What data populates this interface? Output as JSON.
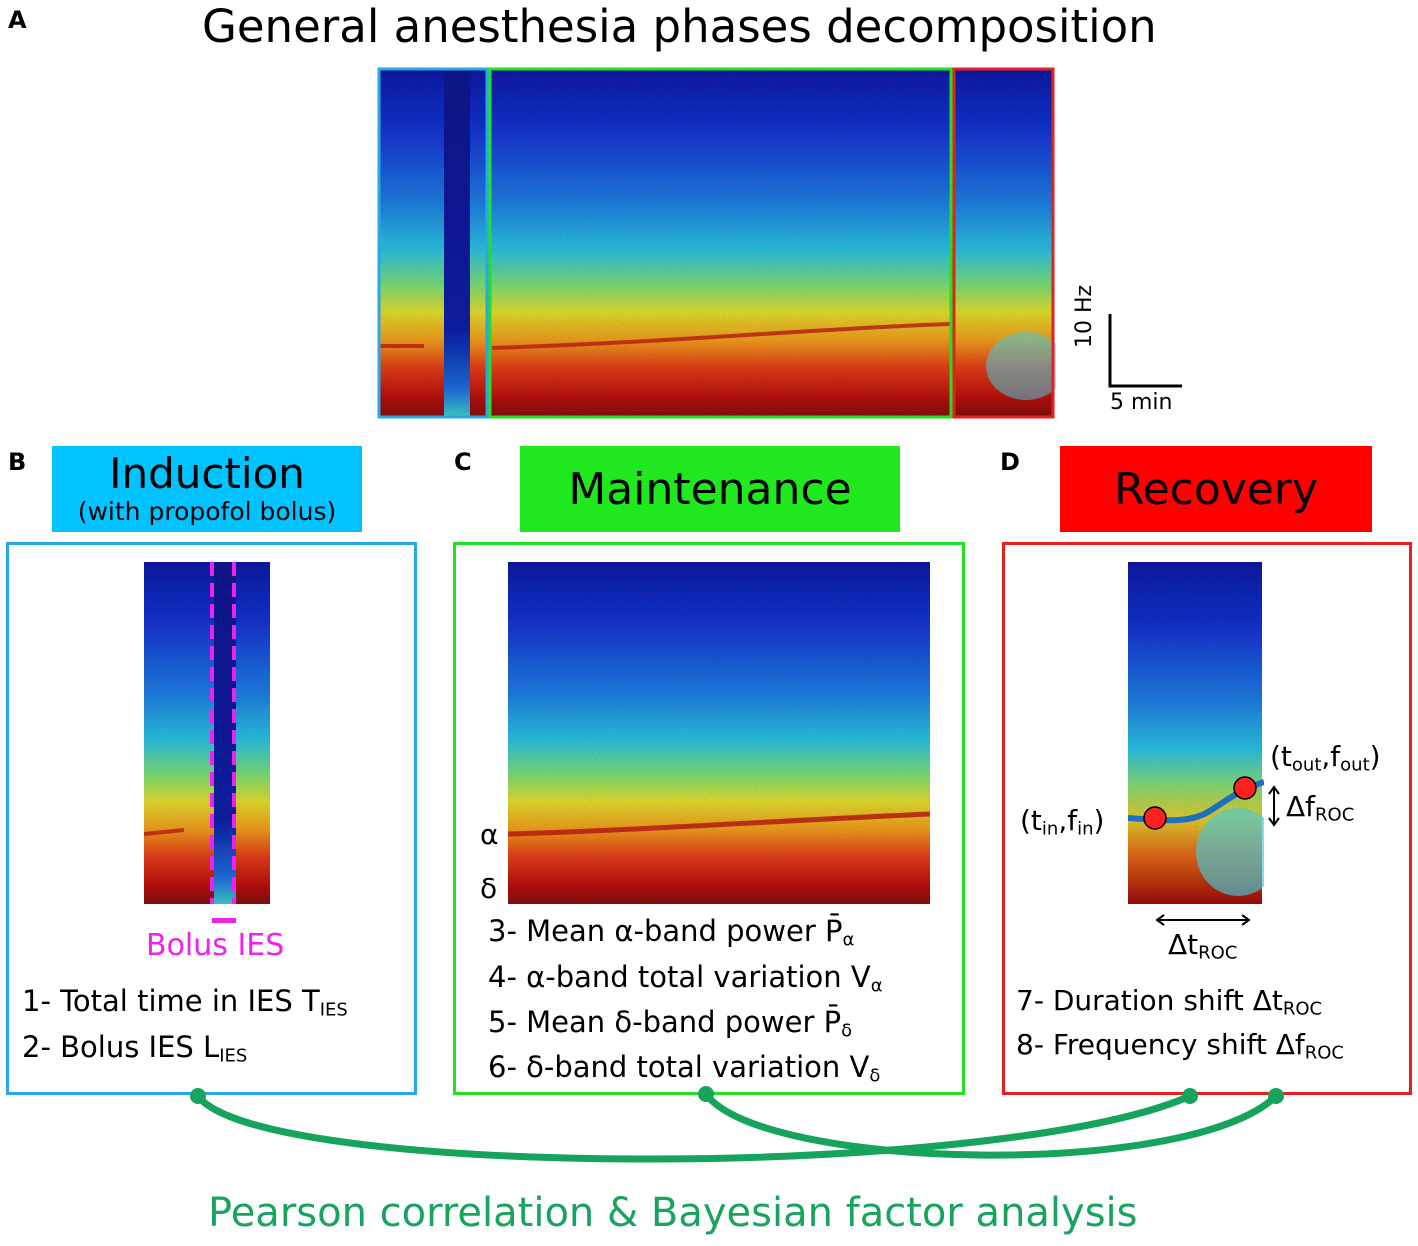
{
  "panel_letters": [
    "A",
    "B",
    "C",
    "D"
  ],
  "title": "General anesthesia phases decomposition",
  "scale_bar": {
    "freq_label": "10 Hz",
    "time_label": "5 min"
  },
  "phases": {
    "induction": {
      "title": "Induction",
      "subtitle": "(with propofol bolus)",
      "color": "#00c3ff",
      "border": "#2aa7e6"
    },
    "maintenance": {
      "title": "Maintenance",
      "color": "#1fe81f",
      "border": "#22e022"
    },
    "recovery": {
      "title": "Recovery",
      "color": "#ff0000",
      "border": "#e62020"
    }
  },
  "induction_box": {
    "bolus_label": "Bolus IES",
    "bolus_color": "#ee22ee",
    "features": [
      {
        "text": "1- Total time in IES T",
        "sub": "IES"
      },
      {
        "text": "2- Bolus IES L",
        "sub": "IES"
      }
    ]
  },
  "maintenance_box": {
    "alpha_label": "α",
    "delta_label": "δ",
    "features": [
      {
        "text": "3- Mean α-band power P̄",
        "sub": "α"
      },
      {
        "text": "4- α-band total variation V",
        "sub": "α"
      },
      {
        "text": "5- Mean δ-band power P̄",
        "sub": "δ"
      },
      {
        "text": "6- δ-band total variation V",
        "sub": "δ"
      }
    ]
  },
  "recovery_box": {
    "point_out": {
      "prefix": "(t",
      "sub1": "out",
      "mid": ",f",
      "sub2": "out",
      "suffix": ")"
    },
    "point_in": {
      "prefix": "(t",
      "sub1": "in",
      "mid": ",f",
      "sub2": "in",
      "suffix": ")"
    },
    "delta_f": {
      "text": "Δf",
      "sub": "ROC"
    },
    "delta_t": {
      "text": "Δt",
      "sub": "ROC"
    },
    "features": [
      {
        "text": "7- Duration shift Δt",
        "sub": "ROC"
      },
      {
        "text": "8- Frequency shift Δf",
        "sub": "ROC"
      }
    ]
  },
  "bottom_label": "Pearson correlation & Bayesian factor analysis",
  "connector_color": "#16a35c"
}
